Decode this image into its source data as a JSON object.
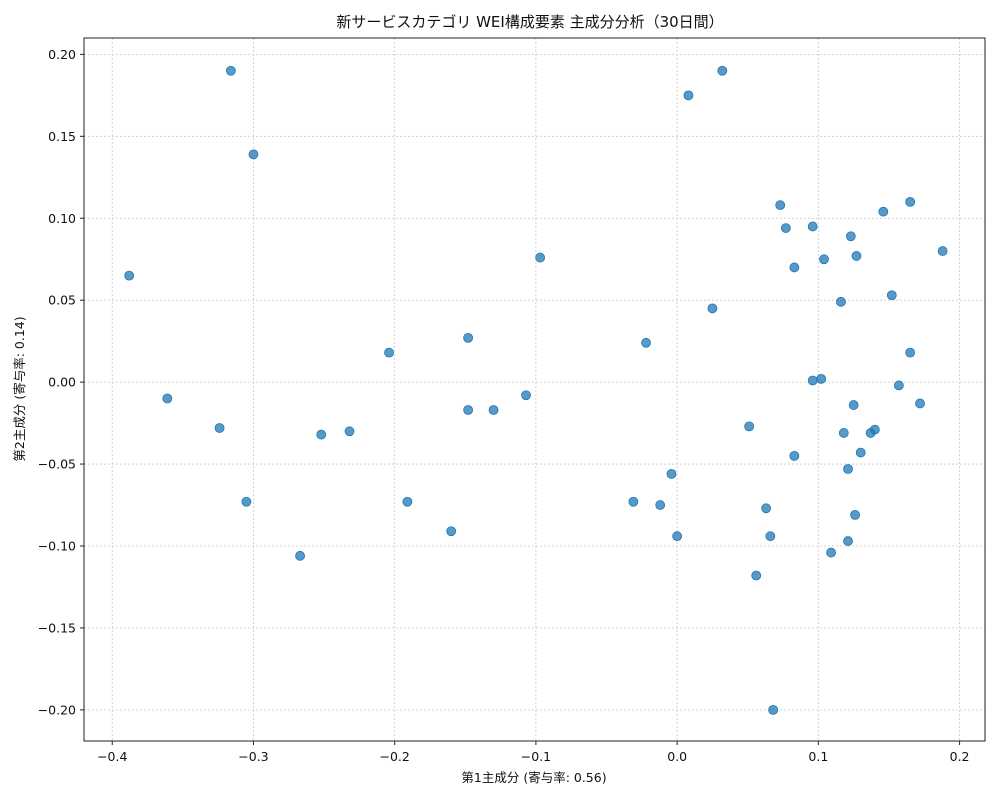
{
  "chart_data": {
    "type": "scatter",
    "title": "新サービスカテゴリ WEI構成要素 主成分分析（30日間）",
    "xlabel": "第1主成分 (寄与率: 0.56)",
    "ylabel": "第2主成分 (寄与率: 0.14)",
    "xlim": [
      -0.42,
      0.218
    ],
    "ylim": [
      -0.219,
      0.21
    ],
    "xticks": [
      -0.4,
      -0.3,
      -0.2,
      -0.1,
      0.0,
      0.1,
      0.2
    ],
    "xtick_labels": [
      "−0.4",
      "−0.3",
      "−0.2",
      "−0.1",
      "0.0",
      "0.1",
      "0.2"
    ],
    "yticks": [
      -0.2,
      -0.15,
      -0.1,
      -0.05,
      0.0,
      0.05,
      0.1,
      0.15,
      0.2
    ],
    "ytick_labels": [
      "−0.20",
      "−0.15",
      "−0.10",
      "−0.05",
      "0.00",
      "0.05",
      "0.10",
      "0.15",
      "0.20"
    ],
    "grid": true,
    "marker_color": "#1f77b4",
    "points": [
      [
        -0.316,
        0.19
      ],
      [
        -0.3,
        0.139
      ],
      [
        -0.388,
        0.065
      ],
      [
        -0.361,
        -0.01
      ],
      [
        -0.324,
        -0.028
      ],
      [
        -0.305,
        -0.073
      ],
      [
        -0.267,
        -0.106
      ],
      [
        -0.252,
        -0.032
      ],
      [
        -0.232,
        -0.03
      ],
      [
        -0.204,
        0.018
      ],
      [
        -0.191,
        -0.073
      ],
      [
        -0.16,
        -0.091
      ],
      [
        -0.148,
        0.027
      ],
      [
        -0.148,
        -0.017
      ],
      [
        -0.13,
        -0.017
      ],
      [
        -0.107,
        -0.008
      ],
      [
        -0.097,
        0.076
      ],
      [
        -0.031,
        -0.073
      ],
      [
        -0.022,
        0.024
      ],
      [
        -0.012,
        -0.075
      ],
      [
        -0.004,
        -0.056
      ],
      [
        0.0,
        -0.094
      ],
      [
        0.008,
        0.175
      ],
      [
        0.025,
        0.045
      ],
      [
        0.032,
        0.19
      ],
      [
        0.051,
        -0.027
      ],
      [
        0.056,
        -0.118
      ],
      [
        0.063,
        -0.077
      ],
      [
        0.066,
        -0.094
      ],
      [
        0.068,
        -0.2
      ],
      [
        0.073,
        0.108
      ],
      [
        0.077,
        0.094
      ],
      [
        0.083,
        0.07
      ],
      [
        0.083,
        -0.045
      ],
      [
        0.096,
        0.095
      ],
      [
        0.096,
        0.001
      ],
      [
        0.102,
        0.002
      ],
      [
        0.104,
        0.075
      ],
      [
        0.109,
        -0.104
      ],
      [
        0.116,
        0.049
      ],
      [
        0.118,
        -0.031
      ],
      [
        0.121,
        -0.053
      ],
      [
        0.121,
        -0.097
      ],
      [
        0.123,
        0.089
      ],
      [
        0.125,
        -0.014
      ],
      [
        0.126,
        -0.081
      ],
      [
        0.127,
        0.077
      ],
      [
        0.13,
        -0.043
      ],
      [
        0.137,
        -0.031
      ],
      [
        0.14,
        -0.029
      ],
      [
        0.146,
        0.104
      ],
      [
        0.152,
        0.053
      ],
      [
        0.157,
        -0.002
      ],
      [
        0.165,
        0.11
      ],
      [
        0.165,
        0.018
      ],
      [
        0.172,
        -0.013
      ],
      [
        0.188,
        0.08
      ]
    ]
  }
}
